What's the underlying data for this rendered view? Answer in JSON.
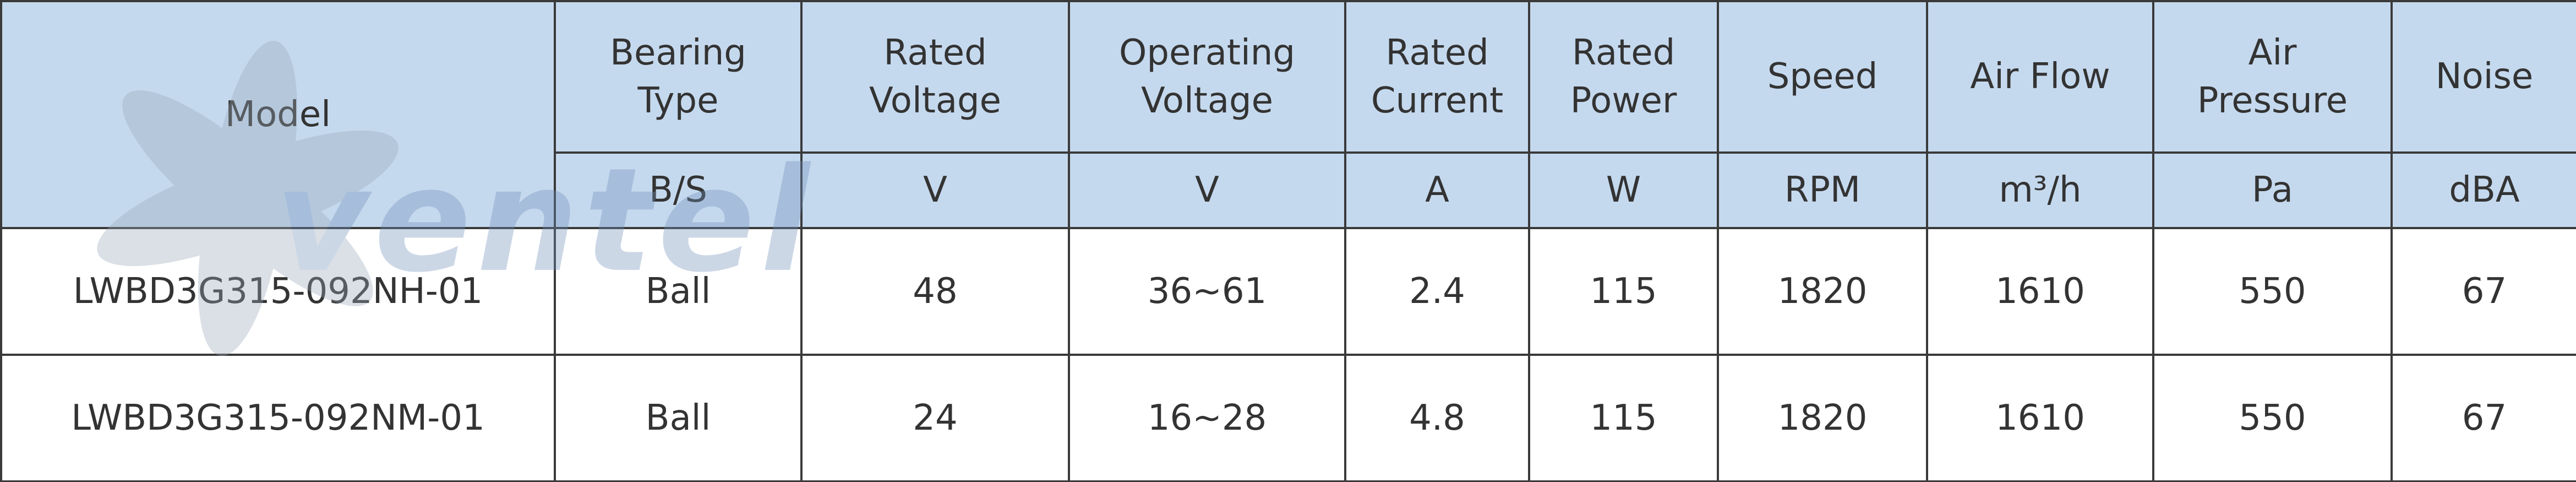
{
  "watermark": "ventel",
  "table": {
    "header": [
      "Model",
      "Bearing\nType",
      "Rated\nVoltage",
      "Operating\nVoltage",
      "Rated\nCurrent",
      "Rated\nPower",
      "Speed",
      "Air Flow",
      "Air\nPressure",
      "Noise"
    ],
    "units": [
      "B/S",
      "V",
      "V",
      "A",
      "W",
      "RPM",
      "m³/h",
      "Pa",
      "dBA"
    ],
    "rows": [
      [
        "LWBD3G315-092NH-01",
        "Ball",
        "48",
        "36~61",
        "2.4",
        "115",
        "1820",
        "1610",
        "550",
        "67"
      ],
      [
        "LWBD3G315-092NM-01",
        "Ball",
        "24",
        "16~28",
        "4.8",
        "115",
        "1820",
        "1610",
        "550",
        "67"
      ]
    ]
  }
}
